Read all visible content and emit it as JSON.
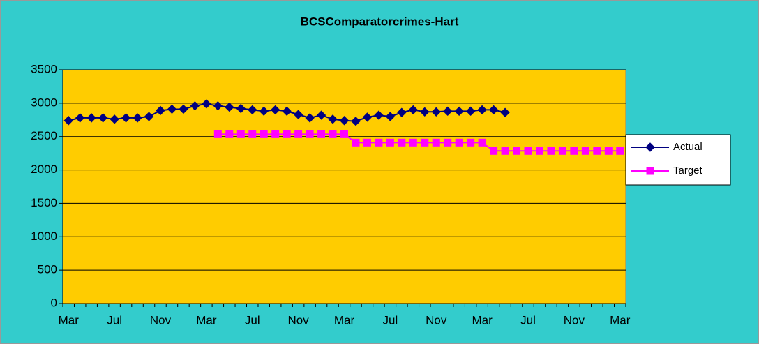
{
  "chart_data": {
    "type": "line",
    "title": "BCSComparatorcrimes-Hart",
    "categories": [
      "Mar",
      null,
      null,
      null,
      "Jul",
      null,
      null,
      null,
      "Nov",
      null,
      null,
      null,
      "Mar",
      null,
      null,
      null,
      "Jul",
      null,
      null,
      null,
      "Nov",
      null,
      null,
      null,
      "Mar",
      null,
      null,
      null,
      "Jul",
      null,
      null,
      null,
      "Nov",
      null,
      null,
      null,
      "Mar",
      null,
      null,
      null,
      "Jul",
      null,
      null,
      null,
      "Nov",
      null,
      null,
      null,
      "Mar"
    ],
    "series": [
      {
        "name": "Actual",
        "color": "#000080",
        "marker": "diamond",
        "values": [
          2740,
          2780,
          2780,
          2780,
          2760,
          2780,
          2780,
          2800,
          2890,
          2910,
          2910,
          2960,
          2990,
          2960,
          2940,
          2920,
          2900,
          2880,
          2900,
          2880,
          2830,
          2780,
          2820,
          2760,
          2740,
          2730,
          2790,
          2820,
          2800,
          2860,
          2900,
          2870,
          2870,
          2880,
          2880,
          2880,
          2900,
          2900,
          2860,
          null,
          null,
          null,
          null,
          null,
          null,
          null,
          null,
          null,
          null
        ]
      },
      {
        "name": "Target",
        "color": "#ff00ff",
        "marker": "square",
        "values": [
          null,
          null,
          null,
          null,
          null,
          null,
          null,
          null,
          null,
          null,
          null,
          null,
          null,
          2535,
          2535,
          2535,
          2535,
          2535,
          2535,
          2535,
          2535,
          2535,
          2535,
          2535,
          2535,
          2410,
          2410,
          2410,
          2410,
          2410,
          2410,
          2410,
          2410,
          2410,
          2410,
          2410,
          2410,
          2285,
          2285,
          2285,
          2285,
          2285,
          2285,
          2285,
          2285,
          2285,
          2285,
          2285,
          2285
        ]
      }
    ],
    "ylim": [
      0,
      3500
    ],
    "yticks": [
      0,
      500,
      1000,
      1500,
      2000,
      2500,
      3000,
      3500
    ],
    "grid": true,
    "legend": "right",
    "background": "#33cccc",
    "plot_background": "#ffcc00"
  }
}
